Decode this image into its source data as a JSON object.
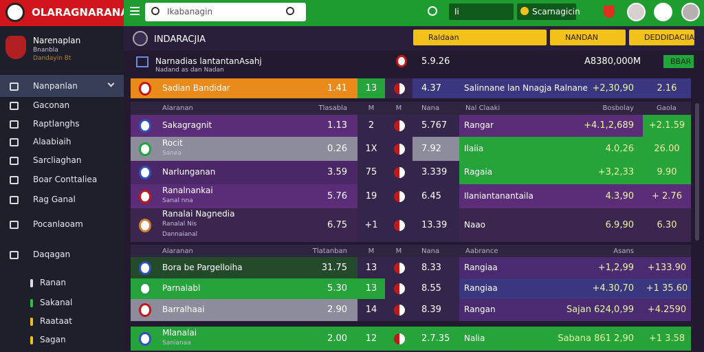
{
  "header": {
    "logo": "OLARAGNARANAN",
    "search_placeholder": "Ikabanagin",
    "selector": "Ii",
    "account": "Scarnagicin"
  },
  "sidebar": {
    "profile": {
      "name": "Narenaplan",
      "sub": "Bnanbla",
      "sub2": "Dandayin Bt"
    },
    "menu": [
      "Nanpanlan",
      "Gaconan",
      "Raptlanghs",
      "Alaabiaih",
      "Sarcliaghan",
      "Boar Conttaliea",
      "Rag Ganal",
      "Pocanlaoam",
      "Daqagan",
      "Ranan",
      "Sakanal",
      "Raataat",
      "Sagan"
    ]
  },
  "main": {
    "title": "INDARACJIA",
    "filters": [
      "Raldaan",
      "NANDAN",
      "DEDDIDACIIA"
    ],
    "summary": {
      "name": "Narnadias lantantanAsahj",
      "sub": "Nadand as dan Nadan",
      "value": "5.9.26",
      "amount": "A8380,000M",
      "button": "BBAR"
    },
    "featured": {
      "name": "Sadian Bandidar",
      "odds": "1.41",
      "m": "13",
      "nana": "4.37",
      "market": "Salinnane lan Nnagja Ralnane",
      "total": "+2,30,90",
      "last": "2.16"
    },
    "groups": [
      {
        "headers": [
          "Alaranan",
          "Tlasabla",
          "M",
          "M",
          "Nana",
          "Nal Claaki",
          "Bosbolay",
          "Gaola"
        ],
        "rows": [
          {
            "name": "Sakagragnit",
            "odds": "1.13",
            "m": "2",
            "nana": "5.767",
            "market": "Rangar",
            "total": "+4.1,2,689",
            "last": "+2.1.59"
          },
          {
            "name": "Rocit",
            "sub": "Sanea",
            "odds": "0.26",
            "m": "1X",
            "nana": "7.92",
            "market": "Ilaiia",
            "total": "4.0,26",
            "last": "26.00"
          },
          {
            "name": "Narlunganan",
            "odds": "3.59",
            "m": "75",
            "nana": "3.339",
            "market": "Ragaia",
            "total": "+3,2,33",
            "last": "9.90"
          },
          {
            "name": "Ranalnankai",
            "sub": "Sanal nna",
            "odds": "5.76",
            "m": "19",
            "nana": "6.45",
            "market": "Ilaniantanantaila",
            "total": "4.3,90",
            "last": "+ 2.76"
          },
          {
            "name": "Ranalai Nagnedia",
            "sub": "Ranalal Nis",
            "sub2": "Dannaianal",
            "odds": "6.75",
            "m": "+1",
            "nana": "13.39",
            "market": "Naao",
            "total": "6.9,90",
            "last": "6.30"
          }
        ]
      },
      {
        "headers": [
          "Alaranan",
          "Tlatanban",
          "M",
          "M",
          "Nana",
          "Aabrance",
          "Asans"
        ],
        "rows": [
          {
            "name": "Bora be Pargelloiha",
            "odds": "31.75",
            "m": "13",
            "nana": "8.33",
            "market": "Rangiaa",
            "total": "+1,2,99",
            "last": "+133.90"
          },
          {
            "name": "Parnalabl",
            "odds": "5.30",
            "m": "13",
            "nana": "8.55",
            "market": "Rangiaa",
            "total": "+4.30,70",
            "last": "+1 35.60"
          },
          {
            "name": "Barralhaai",
            "odds": "2.90",
            "m": "14",
            "nana": "8.39",
            "market": "Rangan",
            "total": "Sajan 624,0,99",
            "last": "+4.2590"
          }
        ]
      }
    ],
    "footer_row": {
      "name": "Mlanalai",
      "sub": "Sanianaa",
      "odds": "2.00",
      "m": "12",
      "nana": "2.7.35",
      "market": "Nalia",
      "total": "Sabana 861 2,90",
      "last": "+1 3.58"
    }
  }
}
